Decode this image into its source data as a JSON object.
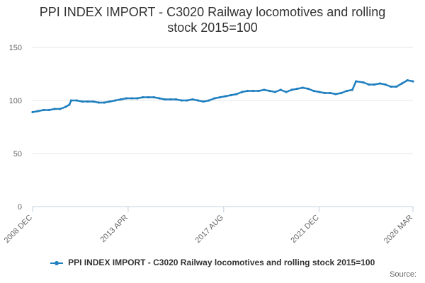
{
  "chart_data": {
    "type": "line",
    "title_lines": [
      "PPI INDEX IMPORT - C3020 Railway locomotives and rolling",
      "stock 2015=100"
    ],
    "xlabel": "",
    "ylabel": "",
    "ylim": [
      0,
      150
    ],
    "yticks": [
      0,
      50,
      100,
      150
    ],
    "xlim": [
      "2008-12",
      "2026-03"
    ],
    "xticks": [
      {
        "date": "2008-12",
        "label": "2008 DEC"
      },
      {
        "date": "2013-04",
        "label": "2013 APR"
      },
      {
        "date": "2017-08",
        "label": "2017 AUG"
      },
      {
        "date": "2021-12",
        "label": "2021 DEC"
      },
      {
        "date": "2026-03",
        "label": "2026 MAR"
      }
    ],
    "grid": true,
    "legend_position": "bottom",
    "series": [
      {
        "name": "PPI INDEX IMPORT - C3020 Railway locomotives and rolling stock 2015=100",
        "color": "#1f7fbf",
        "points": [
          [
            "2008-12",
            89
          ],
          [
            "2009-03",
            90
          ],
          [
            "2009-06",
            91
          ],
          [
            "2009-09",
            91
          ],
          [
            "2009-12",
            92
          ],
          [
            "2010-03",
            92
          ],
          [
            "2010-06",
            94
          ],
          [
            "2010-08",
            96
          ],
          [
            "2010-09",
            100
          ],
          [
            "2010-12",
            100
          ],
          [
            "2011-03",
            99
          ],
          [
            "2011-06",
            99
          ],
          [
            "2011-09",
            99
          ],
          [
            "2011-12",
            98
          ],
          [
            "2012-03",
            98
          ],
          [
            "2012-06",
            99
          ],
          [
            "2012-09",
            100
          ],
          [
            "2012-12",
            101
          ],
          [
            "2013-03",
            102
          ],
          [
            "2013-06",
            102
          ],
          [
            "2013-09",
            102
          ],
          [
            "2013-12",
            103
          ],
          [
            "2014-03",
            103
          ],
          [
            "2014-06",
            103
          ],
          [
            "2014-09",
            102
          ],
          [
            "2014-12",
            101
          ],
          [
            "2015-03",
            101
          ],
          [
            "2015-06",
            101
          ],
          [
            "2015-09",
            100
          ],
          [
            "2015-12",
            100
          ],
          [
            "2016-03",
            101
          ],
          [
            "2016-06",
            100
          ],
          [
            "2016-09",
            99
          ],
          [
            "2016-12",
            100
          ],
          [
            "2017-03",
            102
          ],
          [
            "2017-06",
            103
          ],
          [
            "2017-09",
            104
          ],
          [
            "2017-12",
            105
          ],
          [
            "2018-03",
            106
          ],
          [
            "2018-06",
            108
          ],
          [
            "2018-09",
            109
          ],
          [
            "2018-12",
            109
          ],
          [
            "2019-03",
            109
          ],
          [
            "2019-06",
            110
          ],
          [
            "2019-09",
            109
          ],
          [
            "2019-12",
            108
          ],
          [
            "2020-03",
            110
          ],
          [
            "2020-06",
            108
          ],
          [
            "2020-09",
            110
          ],
          [
            "2020-12",
            111
          ],
          [
            "2021-03",
            112
          ],
          [
            "2021-06",
            111
          ],
          [
            "2021-09",
            109
          ],
          [
            "2021-12",
            108
          ],
          [
            "2022-03",
            107
          ],
          [
            "2022-06",
            107
          ],
          [
            "2022-09",
            106
          ],
          [
            "2022-12",
            107
          ],
          [
            "2023-03",
            109
          ],
          [
            "2023-06",
            110
          ],
          [
            "2023-08",
            118
          ],
          [
            "2023-12",
            117
          ],
          [
            "2024-03",
            115
          ],
          [
            "2024-06",
            115
          ],
          [
            "2024-09",
            116
          ],
          [
            "2024-12",
            115
          ],
          [
            "2025-03",
            113
          ],
          [
            "2025-06",
            113
          ],
          [
            "2025-09",
            116
          ],
          [
            "2025-12",
            119
          ],
          [
            "2026-03",
            118
          ]
        ]
      }
    ],
    "source_label": "Source:"
  }
}
